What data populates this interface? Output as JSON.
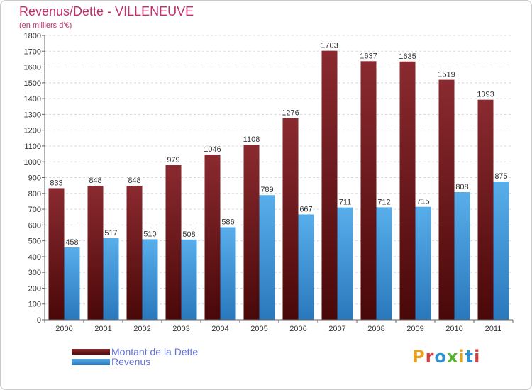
{
  "header": {
    "title": "Revenus/Dette - VILLENEUVE",
    "subtitle": "(en milliers d'€)"
  },
  "colors": {
    "debt": "#7a1c22",
    "debt_dark": "#4a0808",
    "revenue": "#4aa0e0",
    "revenue_dark": "#2a78bc",
    "title": "#c0306a",
    "legend_text": "#6070d8"
  },
  "legend": {
    "debt_label": "Montant de la Dette",
    "revenue_label": "Revenus"
  },
  "logo": {
    "text": "Proxiti",
    "letter_colors": [
      "#e8a020",
      "#d04040",
      "#3090d0",
      "#5ab030",
      "#e0a020",
      "#3090d0",
      "#d04040"
    ]
  },
  "chart_data": {
    "type": "bar",
    "title": "Revenus/Dette - VILLENEUVE",
    "subtitle": "(en milliers d'€)",
    "xlabel": "",
    "ylabel": "",
    "categories": [
      "2000",
      "2001",
      "2002",
      "2003",
      "2004",
      "2005",
      "2006",
      "2007",
      "2008",
      "2009",
      "2010",
      "2011"
    ],
    "series": [
      {
        "name": "Montant de la Dette",
        "values": [
          833,
          848,
          848,
          979,
          1046,
          1108,
          1276,
          1703,
          1637,
          1635,
          1519,
          1393
        ]
      },
      {
        "name": "Revenus",
        "values": [
          458,
          517,
          510,
          508,
          586,
          789,
          667,
          711,
          712,
          715,
          808,
          875
        ]
      }
    ],
    "ylim": [
      0,
      1800
    ],
    "yticks": [
      0,
      100,
      200,
      300,
      400,
      500,
      600,
      700,
      800,
      900,
      1000,
      1100,
      1200,
      1300,
      1400,
      1500,
      1600,
      1700,
      1800
    ],
    "grid": true,
    "legend_position": "bottom-left"
  }
}
